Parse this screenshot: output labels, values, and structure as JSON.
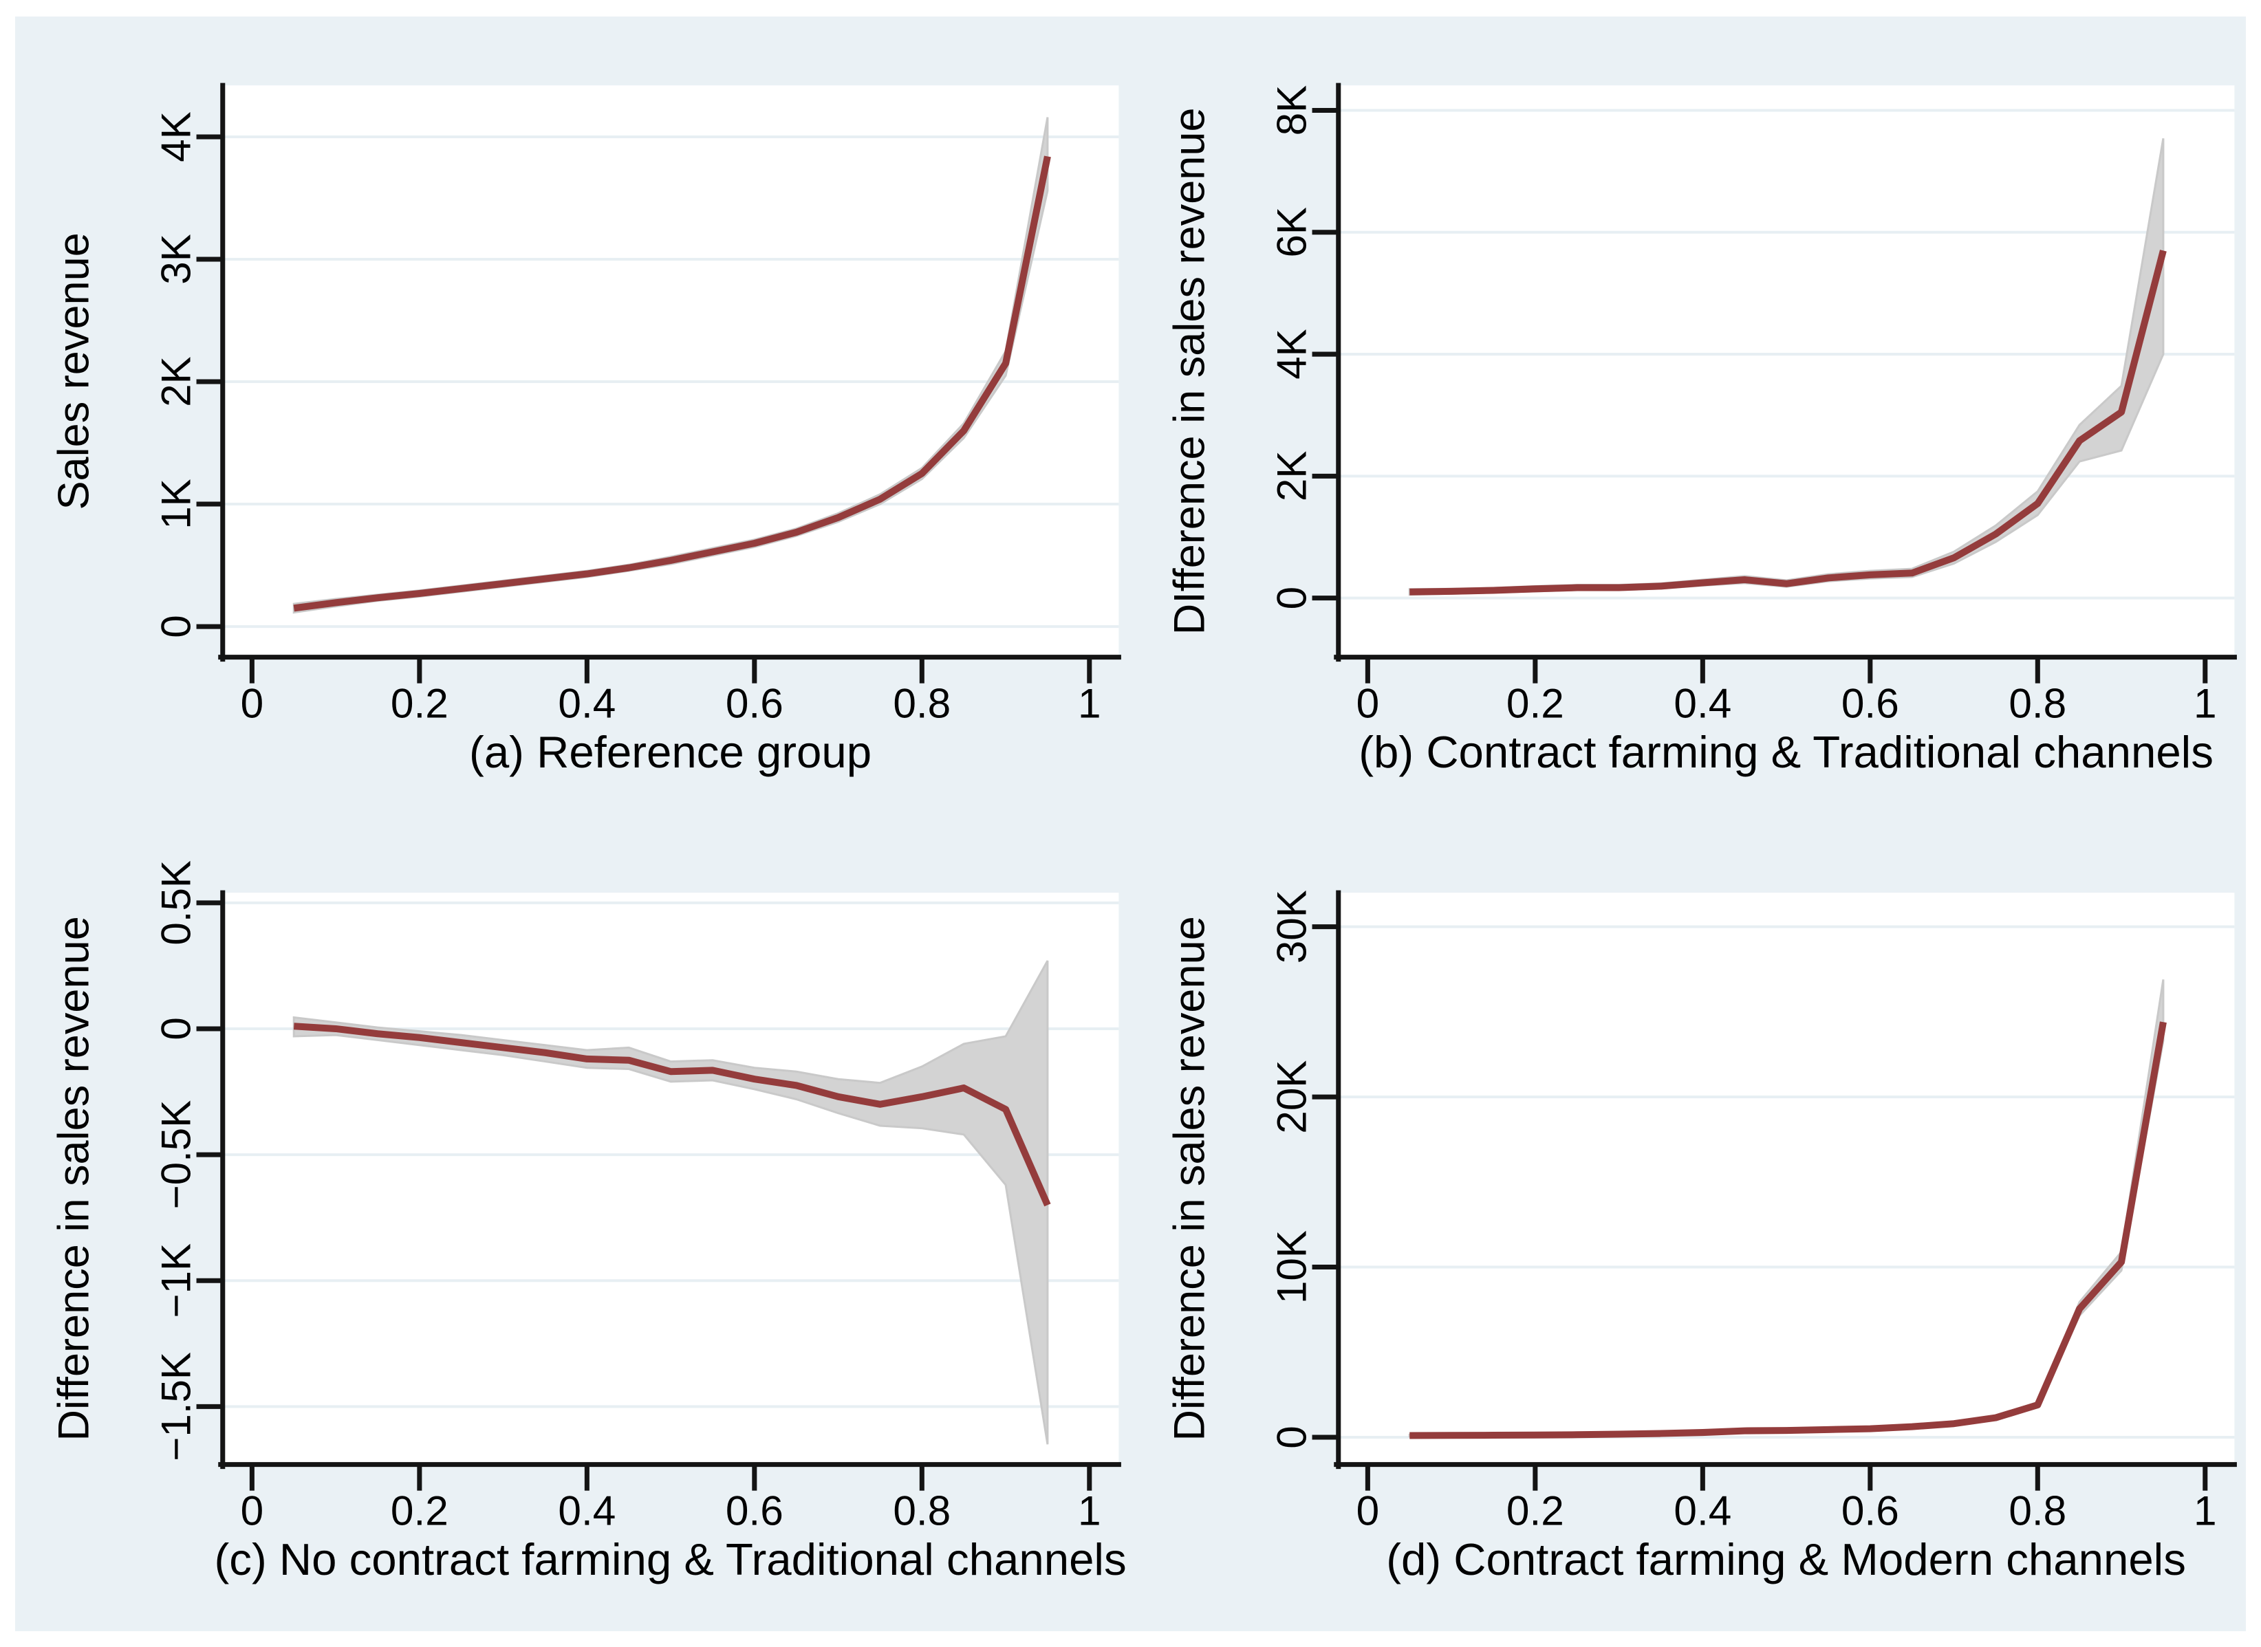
{
  "figure": {
    "page_bg": "#ffffff",
    "canvas_bg": "#eaf1f5",
    "plot_bg": "#ffffff",
    "grid_color": "#e7eff3",
    "axis_color": "#141414",
    "line_color": "#943c3c",
    "band_color": "#d3d3d3",
    "band_edge_color": "#c9c9c9",
    "text_color": "#000000"
  },
  "chart_data": [
    {
      "type": "line",
      "panel": "a",
      "title": "(a) Reference group",
      "ylabel": "Sales revenue",
      "xlabel": "",
      "legend": "none",
      "grid": "horizontal",
      "x": [
        0.05,
        0.1,
        0.15,
        0.2,
        0.25,
        0.3,
        0.35,
        0.4,
        0.45,
        0.5,
        0.55,
        0.6,
        0.65,
        0.7,
        0.75,
        0.8,
        0.85,
        0.9,
        0.95
      ],
      "series": [
        {
          "name": "quantile-estimate",
          "values": [
            150,
            195,
            235,
            270,
            310,
            350,
            390,
            430,
            480,
            540,
            610,
            680,
            770,
            890,
            1040,
            1250,
            1600,
            2150,
            3840
          ]
        }
      ],
      "band": {
        "lower": [
          115,
          165,
          210,
          245,
          285,
          325,
          365,
          405,
          455,
          510,
          580,
          650,
          740,
          855,
          1000,
          1205,
          1540,
          2050,
          3560
        ],
        "upper": [
          185,
          225,
          260,
          295,
          335,
          375,
          415,
          455,
          505,
          570,
          640,
          710,
          800,
          925,
          1080,
          1295,
          1660,
          2250,
          4160
        ]
      },
      "xlim": [
        -0.035,
        1.035
      ],
      "ylim": [
        -250,
        4420
      ],
      "xticks": [
        0,
        0.2,
        0.4,
        0.6,
        0.8,
        1
      ],
      "xtick_labels": [
        "0",
        "0.2",
        "0.4",
        "0.6",
        "0.8",
        "1"
      ],
      "yticks": [
        0,
        1000,
        2000,
        3000,
        4000
      ],
      "ytick_labels": [
        "0",
        "1K",
        "2K",
        "3K",
        "4K"
      ]
    },
    {
      "type": "line",
      "panel": "b",
      "title": "(b) Contract farming & Traditional channels",
      "ylabel": "DIfference in sales revenue",
      "xlabel": "",
      "legend": "none",
      "grid": "horizontal",
      "x": [
        0.05,
        0.1,
        0.15,
        0.2,
        0.25,
        0.3,
        0.35,
        0.4,
        0.45,
        0.5,
        0.55,
        0.6,
        0.65,
        0.7,
        0.75,
        0.8,
        0.85,
        0.9,
        0.95
      ],
      "series": [
        {
          "name": "quantile-estimate",
          "values": [
            100,
            110,
            125,
            150,
            170,
            170,
            195,
            250,
            300,
            235,
            330,
            380,
            410,
            660,
            1050,
            1550,
            2580,
            3050,
            5700
          ]
        }
      ],
      "band": {
        "lower": [
          55,
          70,
          90,
          110,
          130,
          130,
          155,
          205,
          245,
          185,
          275,
          320,
          345,
          565,
          920,
          1360,
          2240,
          2420,
          4000
        ],
        "upper": [
          145,
          150,
          165,
          195,
          215,
          215,
          240,
          300,
          360,
          290,
          390,
          445,
          480,
          760,
          1190,
          1750,
          2840,
          3480,
          7540
        ]
      },
      "xlim": [
        -0.035,
        1.035
      ],
      "ylim": [
        -970,
        8410
      ],
      "xticks": [
        0,
        0.2,
        0.4,
        0.6,
        0.8,
        1
      ],
      "xtick_labels": [
        "0",
        "0.2",
        "0.4",
        "0.6",
        "0.8",
        "1"
      ],
      "yticks": [
        0,
        2000,
        4000,
        6000,
        8000
      ],
      "ytick_labels": [
        "0",
        "2K",
        "4K",
        "6K",
        "8K"
      ]
    },
    {
      "type": "line",
      "panel": "c",
      "title": "(c) No contract farming & Traditional channels",
      "ylabel": "Difference in sales revenue",
      "xlabel": "",
      "legend": "none",
      "grid": "horizontal",
      "x": [
        0.05,
        0.1,
        0.15,
        0.2,
        0.25,
        0.3,
        0.35,
        0.4,
        0.45,
        0.5,
        0.55,
        0.6,
        0.65,
        0.7,
        0.75,
        0.8,
        0.85,
        0.9,
        0.95
      ],
      "series": [
        {
          "name": "quantile-estimate",
          "values": [
            10,
            0,
            -20,
            -35,
            -55,
            -75,
            -95,
            -120,
            -125,
            -170,
            -165,
            -200,
            -225,
            -270,
            -300,
            -270,
            -235,
            -320,
            -700
          ]
        }
      ],
      "band": {
        "lower": [
          -30,
          -25,
          -45,
          -65,
          -85,
          -105,
          -130,
          -155,
          -160,
          -210,
          -205,
          -240,
          -280,
          -335,
          -385,
          -395,
          -420,
          -620,
          -1650
        ],
        "upper": [
          45,
          25,
          5,
          -10,
          -25,
          -45,
          -65,
          -85,
          -75,
          -130,
          -125,
          -155,
          -170,
          -200,
          -215,
          -150,
          -60,
          -30,
          270
        ]
      },
      "xlim": [
        -0.035,
        1.035
      ],
      "ylim": [
        -1730,
        540
      ],
      "xticks": [
        0,
        0.2,
        0.4,
        0.6,
        0.8,
        1
      ],
      "xtick_labels": [
        "0",
        "0.2",
        "0.4",
        "0.6",
        "0.8",
        "1"
      ],
      "yticks": [
        -1500,
        -1000,
        -500,
        0,
        500
      ],
      "ytick_labels": [
        "−1.5K",
        "−1K",
        "−0.5K",
        "0",
        "0.5K"
      ]
    },
    {
      "type": "line",
      "panel": "d",
      "title": "(d) Contract farming & Modern channels",
      "ylabel": "Difference in sales revenue",
      "xlabel": "",
      "legend": "none",
      "grid": "horizontal",
      "x": [
        0.05,
        0.1,
        0.15,
        0.2,
        0.25,
        0.3,
        0.35,
        0.4,
        0.45,
        0.5,
        0.55,
        0.6,
        0.65,
        0.7,
        0.75,
        0.8,
        0.85,
        0.9,
        0.95
      ],
      "series": [
        {
          "name": "quantile-estimate",
          "values": [
            100,
            110,
            120,
            130,
            150,
            180,
            220,
            280,
            380,
            400,
            450,
            500,
            620,
            800,
            1150,
            1900,
            7550,
            10300,
            24400
          ]
        }
      ],
      "band": {
        "lower": [
          50,
          60,
          70,
          80,
          100,
          130,
          170,
          230,
          320,
          340,
          390,
          440,
          550,
          720,
          1050,
          1750,
          7150,
          9800,
          23300
        ],
        "upper": [
          150,
          160,
          170,
          190,
          210,
          240,
          280,
          340,
          440,
          460,
          520,
          580,
          700,
          890,
          1260,
          2060,
          7950,
          10900,
          26900
        ]
      },
      "xlim": [
        -0.035,
        1.035
      ],
      "ylim": [
        -1600,
        32000
      ],
      "xticks": [
        0,
        0.2,
        0.4,
        0.6,
        0.8,
        1
      ],
      "xtick_labels": [
        "0",
        "0.2",
        "0.4",
        "0.6",
        "0.8",
        "1"
      ],
      "yticks": [
        0,
        10000,
        20000,
        30000
      ],
      "ytick_labels": [
        "0",
        "10K",
        "20K",
        "30K"
      ]
    }
  ]
}
